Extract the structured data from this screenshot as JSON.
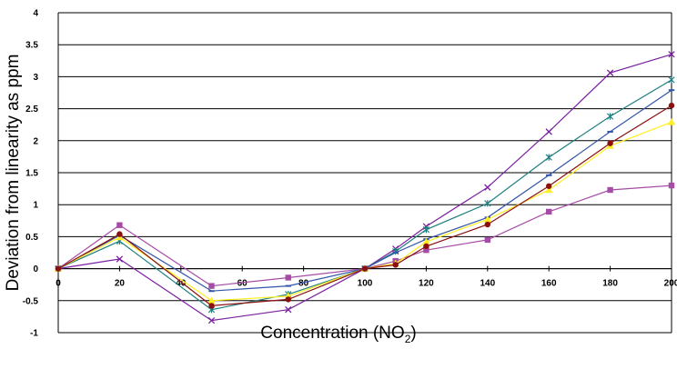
{
  "chart_data": {
    "type": "line",
    "xlabel_main": "Concentration (NO",
    "xlabel_sub": "2",
    "xlabel_end": ")",
    "ylabel": "Deviation from linearity as ppm",
    "xlim": [
      0,
      200
    ],
    "ylim": [
      -1,
      4
    ],
    "x_ticks": [
      "0",
      "20",
      "40",
      "60",
      "80",
      "100",
      "120",
      "140",
      "160",
      "180",
      "200"
    ],
    "y_ticks": [
      "-1",
      "-0.5",
      "0",
      "0.5",
      "1",
      "1.5",
      "2",
      "2.5",
      "3",
      "3.5",
      "4"
    ],
    "grid": "horizontal",
    "legend": "none",
    "x": [
      0,
      20,
      50,
      75,
      100,
      110,
      120,
      140,
      160,
      180,
      200
    ],
    "series": [
      {
        "color": "#a64ca6",
        "marker": "square",
        "values": [
          0,
          0.68,
          -0.27,
          -0.14,
          0,
          0.12,
          0.29,
          0.45,
          0.89,
          1.23,
          1.3
        ]
      },
      {
        "color": "#7a1fa2",
        "marker": "x",
        "values": [
          0,
          0.15,
          -0.81,
          -0.64,
          0,
          0.31,
          0.66,
          1.27,
          2.14,
          3.06,
          3.35
        ]
      },
      {
        "color": "#1f7f7f",
        "marker": "star",
        "values": [
          0,
          0.43,
          -0.64,
          -0.4,
          0,
          0.27,
          0.61,
          1.02,
          1.74,
          2.38,
          2.95
        ]
      },
      {
        "color": "#3355aa",
        "marker": "dash",
        "values": [
          0,
          0.52,
          -0.35,
          -0.27,
          0,
          0.25,
          0.46,
          0.8,
          1.46,
          2.14,
          2.79
        ]
      },
      {
        "color": "#ffee22",
        "marker": "triangle",
        "values": [
          0,
          0.49,
          -0.5,
          -0.43,
          0,
          0.08,
          0.42,
          0.77,
          1.23,
          1.92,
          2.29
        ]
      },
      {
        "color": "#8b1010",
        "marker": "circle",
        "values": [
          0,
          0.54,
          -0.58,
          -0.48,
          0,
          0.06,
          0.35,
          0.69,
          1.29,
          1.96,
          2.55
        ]
      }
    ]
  }
}
